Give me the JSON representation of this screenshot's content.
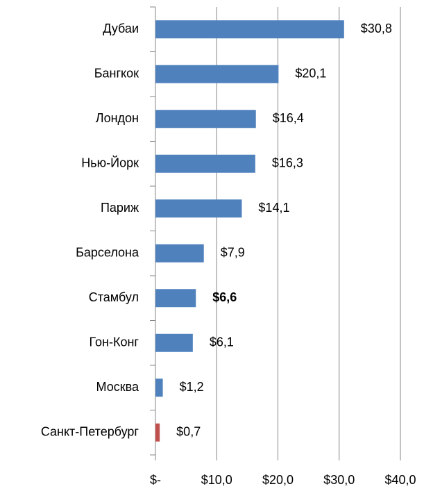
{
  "chart_data": {
    "type": "bar",
    "orientation": "horizontal",
    "categories": [
      "Дубаи",
      "Бангкок",
      "Лондон",
      "Нью-Йорк",
      "Париж",
      "Барселона",
      "Стамбул",
      "Гон-Конг",
      "Москва",
      "Санкт-Петербург"
    ],
    "values": [
      30.8,
      20.1,
      16.4,
      16.3,
      14.1,
      7.9,
      6.6,
      6.1,
      1.2,
      0.7
    ],
    "value_labels": [
      "$30,8",
      "$20,1",
      "$16,4",
      "$16,3",
      "$14,1",
      "$7,9",
      "$6,6",
      "$6,1",
      "$1,2",
      "$0,7"
    ],
    "value_label_bold": [
      false,
      false,
      false,
      false,
      false,
      false,
      true,
      false,
      false,
      false
    ],
    "colors": [
      "#4f81bd",
      "#4f81bd",
      "#4f81bd",
      "#4f81bd",
      "#4f81bd",
      "#4f81bd",
      "#4f81bd",
      "#4f81bd",
      "#4f81bd",
      "#c0504d"
    ],
    "xlim": [
      0,
      40
    ],
    "xticks": [
      {
        "value": 0,
        "label": "$-"
      },
      {
        "value": 10,
        "label": "$10,0"
      },
      {
        "value": 20,
        "label": "$20,0"
      },
      {
        "value": 30,
        "label": "$30,0"
      },
      {
        "value": 40,
        "label": "$40,0"
      }
    ],
    "grid": true
  }
}
